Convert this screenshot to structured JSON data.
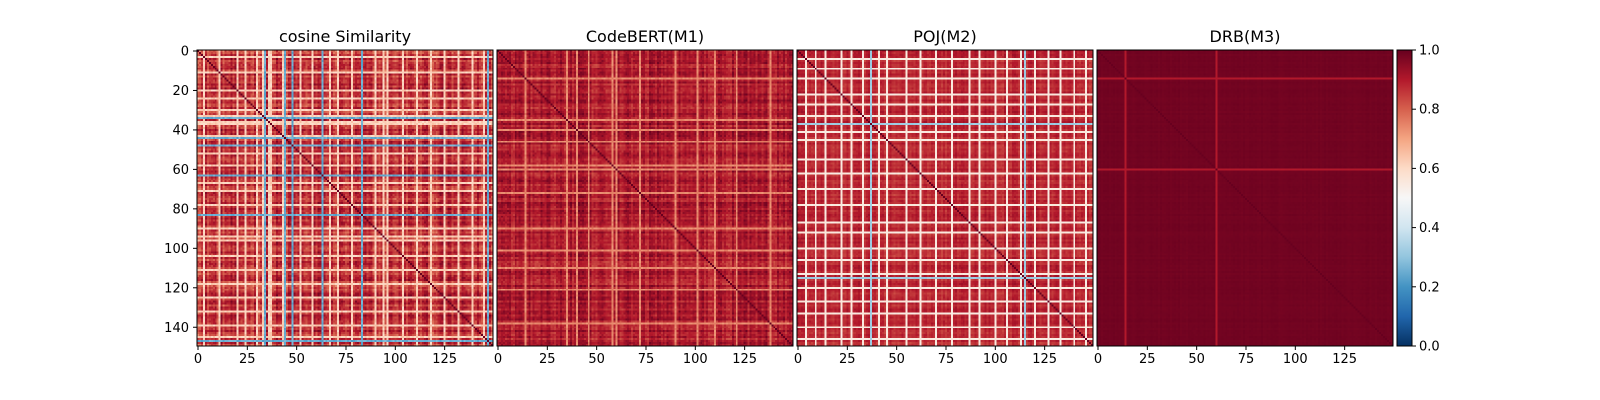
{
  "chart_data": [
    {
      "type": "heatmap",
      "title": "cosine Similarity",
      "size": 150,
      "xlim": [
        0,
        149
      ],
      "ylim": [
        0,
        149
      ],
      "xticks": [
        0,
        25,
        50,
        75,
        100,
        125
      ],
      "yticks": [
        0,
        20,
        40,
        60,
        80,
        100,
        120,
        140
      ],
      "base_similarity": 0.86,
      "low_similarity_indices": [
        34,
        44,
        48,
        63,
        83,
        147
      ],
      "pale_band_indices": [
        3,
        11,
        20,
        24,
        30,
        33,
        36,
        37,
        43,
        52,
        58,
        67,
        71,
        78,
        90,
        94,
        96,
        104,
        111,
        118,
        125,
        132,
        139,
        145
      ],
      "pale_band_value": 0.62,
      "low_band_value": 0.25,
      "noise": 0.07
    },
    {
      "type": "heatmap",
      "title": "CodeBERT(M1)",
      "size": 150,
      "xlim": [
        0,
        149
      ],
      "ylim": [
        0,
        149
      ],
      "xticks": [
        0,
        25,
        50,
        75,
        100,
        125
      ],
      "yticks": [],
      "base_similarity": 0.9,
      "low_similarity_indices": [],
      "pale_band_indices": [
        14,
        35,
        40,
        46,
        58,
        60,
        72,
        90,
        101,
        110,
        121,
        138
      ],
      "pale_band_value": 0.74,
      "low_band_value": 0.5,
      "noise": 0.05
    },
    {
      "type": "heatmap",
      "title": "POJ(M2)",
      "size": 150,
      "xlim": [
        0,
        149
      ],
      "ylim": [
        0,
        149
      ],
      "xticks": [
        0,
        25,
        50,
        75,
        100,
        125
      ],
      "yticks": [],
      "base_similarity": 0.88,
      "low_similarity_indices": [
        37,
        115
      ],
      "pale_band_indices": [
        4,
        9,
        14,
        22,
        27,
        33,
        41,
        45,
        55,
        62,
        70,
        78,
        87,
        92,
        100,
        106,
        113,
        120,
        127,
        133,
        140,
        146
      ],
      "pale_band_value": 0.55,
      "low_band_value": 0.32,
      "noise": 0.03
    },
    {
      "type": "heatmap",
      "title": "DRB(M3)",
      "size": 150,
      "xlim": [
        0,
        149
      ],
      "ylim": [
        0,
        149
      ],
      "xticks": [
        0,
        25,
        50,
        75,
        100,
        125
      ],
      "yticks": [],
      "base_similarity": 0.985,
      "low_similarity_indices": [],
      "pale_band_indices": [
        14,
        60
      ],
      "pale_band_value": 0.9,
      "low_band_value": 0.9,
      "noise": 0.004
    }
  ],
  "colorbar": {
    "vmin": 0.0,
    "vmax": 1.0,
    "ticks": [
      "0.0",
      "0.2",
      "0.4",
      "0.6",
      "0.8",
      "1.0"
    ],
    "colormap": "RdBu_r",
    "colors": [
      "#053061",
      "#2166ac",
      "#4393c3",
      "#92c5de",
      "#d1e5f0",
      "#f7f7f7",
      "#fddbc7",
      "#f4a582",
      "#d6604d",
      "#b2182b",
      "#67001f"
    ]
  }
}
